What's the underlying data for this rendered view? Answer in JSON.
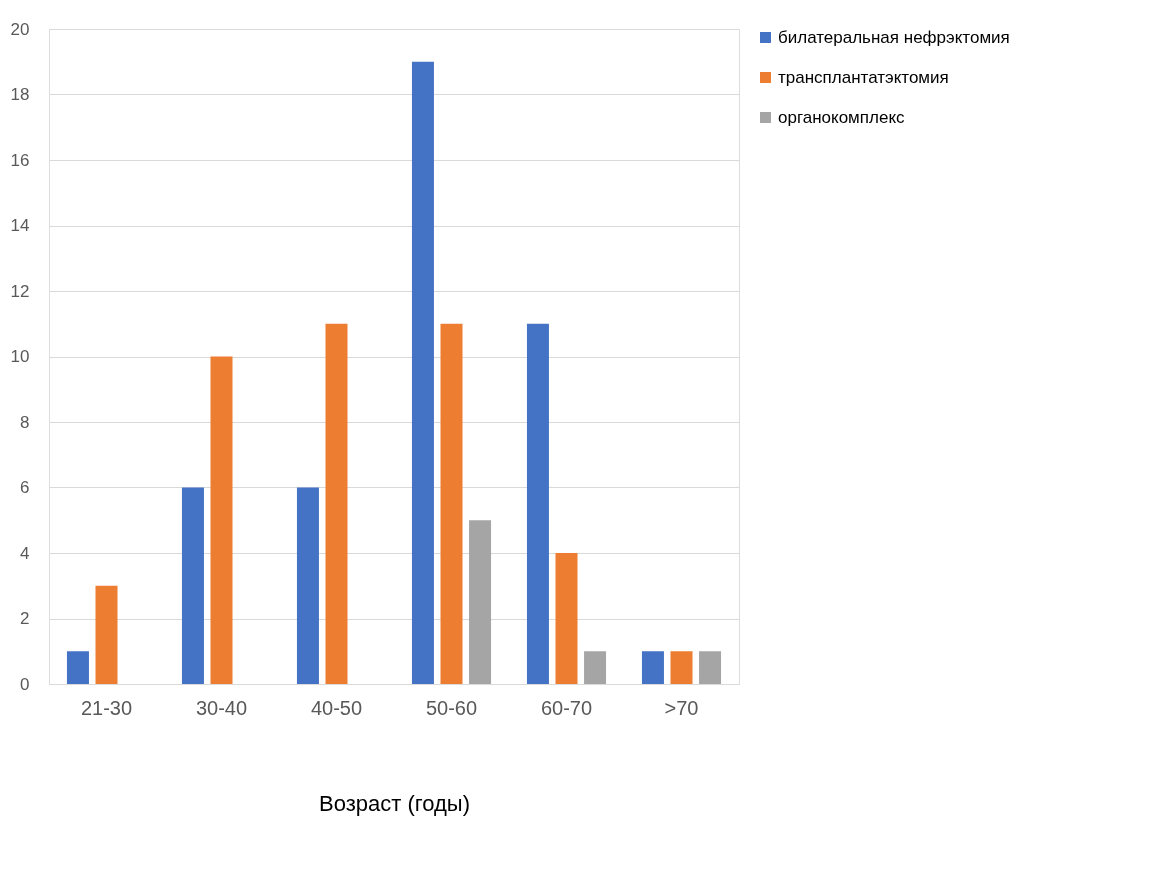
{
  "chart_data": {
    "type": "bar",
    "xlabel": "Возраст (годы)",
    "categories": [
      "21-30",
      "30-40",
      "40-50",
      "50-60",
      "60-70",
      ">70"
    ],
    "series": [
      {
        "name": "билатеральная нефрэктомия",
        "color": "#4472c4",
        "values": [
          1,
          6,
          6,
          19,
          11,
          1
        ]
      },
      {
        "name": "трансплантатэктомия",
        "color": "#ed7d31",
        "values": [
          3,
          10,
          11,
          11,
          4,
          1
        ]
      },
      {
        "name": "органокомплекс",
        "color": "#a5a5a5",
        "values": [
          0,
          0,
          0,
          5,
          1,
          1
        ]
      }
    ],
    "ylim": [
      0,
      20
    ],
    "yticks": [
      0,
      2,
      4,
      6,
      8,
      10,
      12,
      14,
      16,
      18,
      20
    ],
    "grid": "y",
    "legend": "right"
  }
}
